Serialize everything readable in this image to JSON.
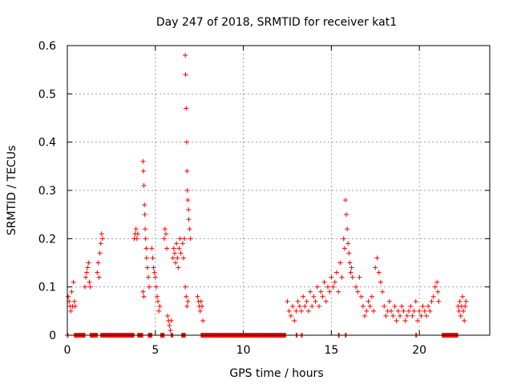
{
  "chart_data": {
    "type": "scatter",
    "title": "Day 247 of 2018, SRMTID for receiver kat1",
    "xlabel": "GPS time / hours",
    "ylabel": "SRMTID / TECUs",
    "xlim": [
      0,
      24
    ],
    "ylim": [
      0,
      0.6
    ],
    "xticks": [
      0,
      5,
      10,
      15,
      20
    ],
    "yticks": [
      0,
      0.1,
      0.2,
      0.3,
      0.4,
      0.5,
      0.6
    ],
    "xtick_labels": [
      "0",
      "5",
      "10",
      "15",
      "20"
    ],
    "ytick_labels": [
      "0",
      "0.1",
      "0.2",
      "0.3",
      "0.4",
      "0.5",
      "0.6"
    ],
    "grid": true,
    "marker": "+",
    "color": "#ff0000",
    "series": [
      {
        "name": "SRMTID",
        "points": [
          [
            0.05,
            0.08
          ],
          [
            0.1,
            0.07
          ],
          [
            0.15,
            0.06
          ],
          [
            0.2,
            0.05
          ],
          [
            0.25,
            0.09
          ],
          [
            0.3,
            0.06
          ],
          [
            0.35,
            0.11
          ],
          [
            0.4,
            0.07
          ],
          [
            0.45,
            0.06
          ],
          [
            1.0,
            0.1
          ],
          [
            1.05,
            0.12
          ],
          [
            1.1,
            0.13
          ],
          [
            1.15,
            0.14
          ],
          [
            1.2,
            0.15
          ],
          [
            1.25,
            0.11
          ],
          [
            1.3,
            0.1
          ],
          [
            1.7,
            0.13
          ],
          [
            1.75,
            0.15
          ],
          [
            1.8,
            0.12
          ],
          [
            1.85,
            0.17
          ],
          [
            1.9,
            0.19
          ],
          [
            1.95,
            0.21
          ],
          [
            2.0,
            0.2
          ],
          [
            3.8,
            0.2
          ],
          [
            3.85,
            0.21
          ],
          [
            3.9,
            0.22
          ],
          [
            3.95,
            0.2
          ],
          [
            4.0,
            0.21
          ],
          [
            4.3,
            0.36
          ],
          [
            4.32,
            0.34
          ],
          [
            4.35,
            0.31
          ],
          [
            4.38,
            0.27
          ],
          [
            4.4,
            0.25
          ],
          [
            4.42,
            0.22
          ],
          [
            4.45,
            0.2
          ],
          [
            4.48,
            0.18
          ],
          [
            4.5,
            0.16
          ],
          [
            4.55,
            0.14
          ],
          [
            4.6,
            0.12
          ],
          [
            4.65,
            0.1
          ],
          [
            4.3,
            0.09
          ],
          [
            4.35,
            0.08
          ],
          [
            4.8,
            0.18
          ],
          [
            4.85,
            0.16
          ],
          [
            4.9,
            0.14
          ],
          [
            4.95,
            0.13
          ],
          [
            5.0,
            0.12
          ],
          [
            5.05,
            0.1
          ],
          [
            5.1,
            0.08
          ],
          [
            5.15,
            0.07
          ],
          [
            5.2,
            0.05
          ],
          [
            5.25,
            0.06
          ],
          [
            5.5,
            0.2
          ],
          [
            5.55,
            0.22
          ],
          [
            5.6,
            0.21
          ],
          [
            5.65,
            0.18
          ],
          [
            5.7,
            0.04
          ],
          [
            5.75,
            0.03
          ],
          [
            5.8,
            0.02
          ],
          [
            5.85,
            0.01
          ],
          [
            5.9,
            0.03
          ],
          [
            6.0,
            0.16
          ],
          [
            6.05,
            0.18
          ],
          [
            6.1,
            0.17
          ],
          [
            6.15,
            0.15
          ],
          [
            6.2,
            0.19
          ],
          [
            6.25,
            0.16
          ],
          [
            6.3,
            0.14
          ],
          [
            6.35,
            0.18
          ],
          [
            6.4,
            0.2
          ],
          [
            6.45,
            0.17
          ],
          [
            6.55,
            0.19
          ],
          [
            6.6,
            0.16
          ],
          [
            6.65,
            0.2
          ],
          [
            6.7,
            0.58
          ],
          [
            6.72,
            0.54
          ],
          [
            6.75,
            0.47
          ],
          [
            6.78,
            0.4
          ],
          [
            6.8,
            0.34
          ],
          [
            6.82,
            0.3
          ],
          [
            6.85,
            0.28
          ],
          [
            6.88,
            0.26
          ],
          [
            6.9,
            0.24
          ],
          [
            6.95,
            0.22
          ],
          [
            7.0,
            0.2
          ],
          [
            6.7,
            0.1
          ],
          [
            6.75,
            0.08
          ],
          [
            6.8,
            0.06
          ],
          [
            6.85,
            0.07
          ],
          [
            7.4,
            0.08
          ],
          [
            7.45,
            0.07
          ],
          [
            7.5,
            0.06
          ],
          [
            7.55,
            0.05
          ],
          [
            7.6,
            0.07
          ],
          [
            7.65,
            0.06
          ],
          [
            7.7,
            0.03
          ],
          [
            12.5,
            0.07
          ],
          [
            12.6,
            0.05
          ],
          [
            12.7,
            0.04
          ],
          [
            12.8,
            0.06
          ],
          [
            12.9,
            0.03
          ],
          [
            13.0,
            0.05
          ],
          [
            13.1,
            0.07
          ],
          [
            13.2,
            0.06
          ],
          [
            13.3,
            0.05
          ],
          [
            13.4,
            0.08
          ],
          [
            13.5,
            0.06
          ],
          [
            13.6,
            0.07
          ],
          [
            13.7,
            0.05
          ],
          [
            13.8,
            0.09
          ],
          [
            13.9,
            0.06
          ],
          [
            14.0,
            0.08
          ],
          [
            14.1,
            0.07
          ],
          [
            14.2,
            0.1
          ],
          [
            14.3,
            0.06
          ],
          [
            14.4,
            0.09
          ],
          [
            14.5,
            0.08
          ],
          [
            14.6,
            0.11
          ],
          [
            14.7,
            0.07
          ],
          [
            14.8,
            0.1
          ],
          [
            14.9,
            0.09
          ],
          [
            15.0,
            0.12
          ],
          [
            15.1,
            0.1
          ],
          [
            15.2,
            0.11
          ],
          [
            15.3,
            0.13
          ],
          [
            15.4,
            0.09
          ],
          [
            15.5,
            0.15
          ],
          [
            15.6,
            0.12
          ],
          [
            15.7,
            0.2
          ],
          [
            15.75,
            0.18
          ],
          [
            15.8,
            0.28
          ],
          [
            15.85,
            0.25
          ],
          [
            15.9,
            0.22
          ],
          [
            15.95,
            0.19
          ],
          [
            16.0,
            0.17
          ],
          [
            16.05,
            0.15
          ],
          [
            16.1,
            0.13
          ],
          [
            16.15,
            0.14
          ],
          [
            16.2,
            0.12
          ],
          [
            16.4,
            0.1
          ],
          [
            16.5,
            0.09
          ],
          [
            16.6,
            0.12
          ],
          [
            16.7,
            0.08
          ],
          [
            16.8,
            0.06
          ],
          [
            16.9,
            0.04
          ],
          [
            17.0,
            0.05
          ],
          [
            17.1,
            0.07
          ],
          [
            17.2,
            0.06
          ],
          [
            17.3,
            0.08
          ],
          [
            17.4,
            0.05
          ],
          [
            17.5,
            0.14
          ],
          [
            17.6,
            0.16
          ],
          [
            17.7,
            0.13
          ],
          [
            17.8,
            0.11
          ],
          [
            17.9,
            0.09
          ],
          [
            18.0,
            0.06
          ],
          [
            18.1,
            0.04
          ],
          [
            18.2,
            0.05
          ],
          [
            18.3,
            0.07
          ],
          [
            18.4,
            0.05
          ],
          [
            18.5,
            0.04
          ],
          [
            18.6,
            0.06
          ],
          [
            18.7,
            0.03
          ],
          [
            18.8,
            0.05
          ],
          [
            18.9,
            0.04
          ],
          [
            19.0,
            0.06
          ],
          [
            19.1,
            0.05
          ],
          [
            19.2,
            0.03
          ],
          [
            19.3,
            0.04
          ],
          [
            19.4,
            0.05
          ],
          [
            19.5,
            0.06
          ],
          [
            19.6,
            0.04
          ],
          [
            19.7,
            0.05
          ],
          [
            19.8,
            0.07
          ],
          [
            19.9,
            0.03
          ],
          [
            20.0,
            0.05
          ],
          [
            20.1,
            0.04
          ],
          [
            20.2,
            0.06
          ],
          [
            20.3,
            0.05
          ],
          [
            20.4,
            0.04
          ],
          [
            20.5,
            0.06
          ],
          [
            20.6,
            0.05
          ],
          [
            20.7,
            0.07
          ],
          [
            20.8,
            0.08
          ],
          [
            20.9,
            0.1
          ],
          [
            21.0,
            0.11
          ],
          [
            21.05,
            0.09
          ],
          [
            21.1,
            0.07
          ],
          [
            22.2,
            0.06
          ],
          [
            22.25,
            0.05
          ],
          [
            22.3,
            0.07
          ],
          [
            22.35,
            0.04
          ],
          [
            22.4,
            0.06
          ],
          [
            22.45,
            0.08
          ],
          [
            22.5,
            0.05
          ],
          [
            22.55,
            0.03
          ],
          [
            22.6,
            0.06
          ],
          [
            22.65,
            0.07
          ]
        ],
        "zero_segments": [
          [
            0.0,
            0.05
          ],
          [
            0.4,
            1.0
          ],
          [
            1.3,
            1.7
          ],
          [
            1.9,
            3.8
          ],
          [
            4.0,
            4.3
          ],
          [
            4.6,
            4.8
          ],
          [
            5.3,
            5.5
          ],
          [
            5.9,
            6.0
          ],
          [
            6.5,
            6.7
          ],
          [
            7.6,
            12.4
          ],
          [
            13.0,
            13.05
          ],
          [
            13.3,
            13.35
          ],
          [
            15.4,
            15.45
          ],
          [
            15.8,
            15.85
          ],
          [
            19.8,
            19.85
          ],
          [
            21.3,
            22.2
          ]
        ]
      }
    ]
  }
}
